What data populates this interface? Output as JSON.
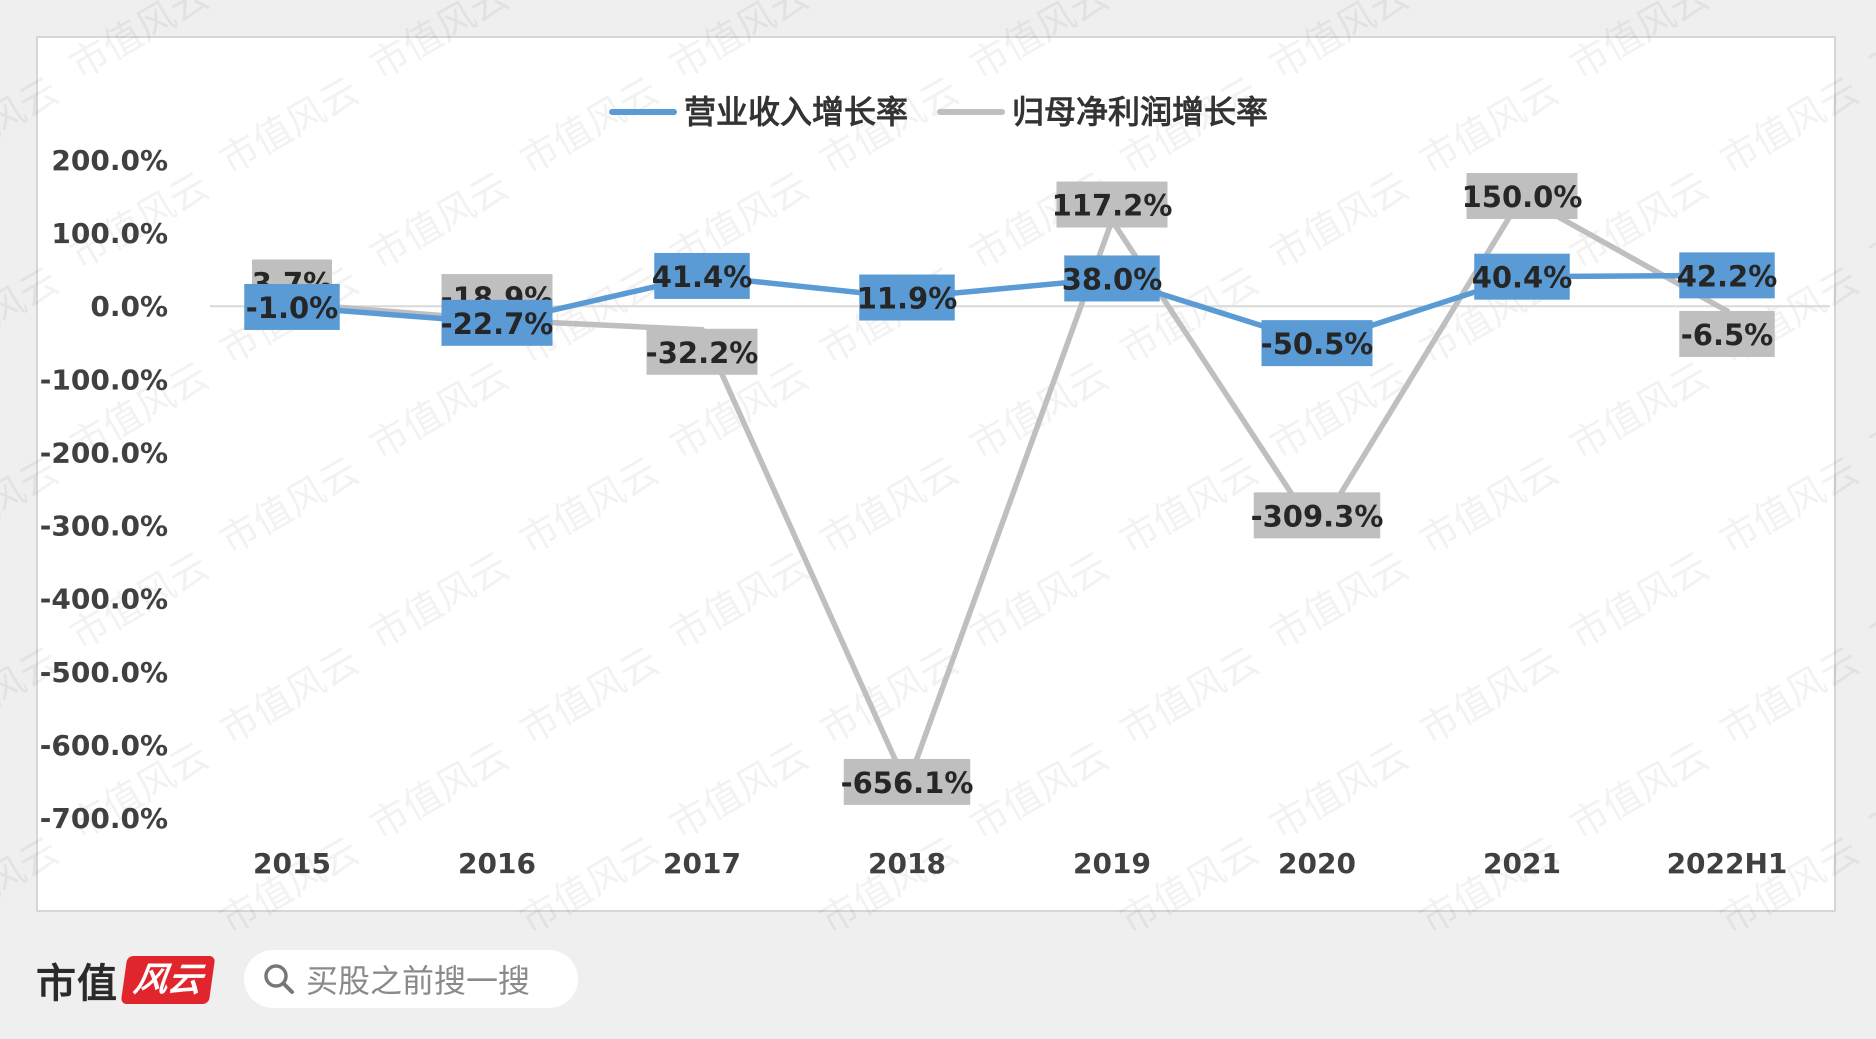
{
  "chart_data": {
    "type": "line",
    "categories": [
      "2015",
      "2016",
      "2017",
      "2018",
      "2019",
      "2020",
      "2021",
      "2022H1"
    ],
    "series": [
      {
        "name": "营业收入增长率",
        "color": "#5b9bd5",
        "values": [
          -1.0,
          -22.7,
          41.4,
          11.9,
          38.0,
          -50.5,
          40.4,
          42.2
        ],
        "labels": [
          "-1.0%",
          "-22.7%",
          "41.4%",
          "11.9%",
          "38.0%",
          "-50.5%",
          "40.4%",
          "42.2%"
        ]
      },
      {
        "name": "归母净利润增长率",
        "color": "#bfbfbf",
        "values": [
          3.7,
          -18.9,
          -32.2,
          -656.1,
          117.2,
          -309.3,
          150.0,
          -6.5
        ],
        "labels": [
          "3.7%",
          "-18.9%",
          "-32.2%",
          "-656.1%",
          "117.2%",
          "-309.3%",
          "150.0%",
          "-6.5%"
        ]
      }
    ],
    "ylim": [
      -700,
      200
    ],
    "yticks": [
      200,
      100,
      0,
      -100,
      -200,
      -300,
      -400,
      -500,
      -600,
      -700
    ],
    "ytick_labels": [
      "200.0%",
      "100.0%",
      "0.0%",
      "-100.0%",
      "-200.0%",
      "-300.0%",
      "-400.0%",
      "-500.0%",
      "-600.0%",
      "-700.0%"
    ],
    "legend_position": "top-center",
    "grid": false
  },
  "watermark": "市值风云",
  "footer": {
    "logo_text": "市值",
    "logo_badge": "风云",
    "search_icon": "search-icon",
    "search_text": "买股之前搜一搜"
  }
}
